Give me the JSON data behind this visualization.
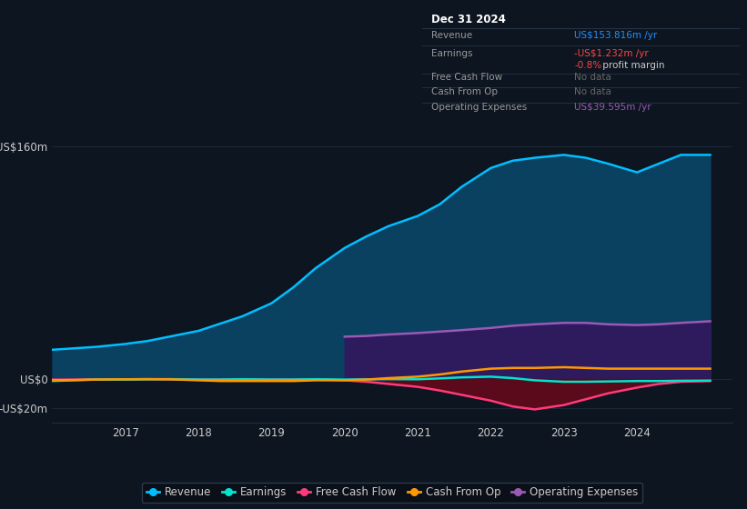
{
  "background_color": "#0d1520",
  "plot_bg_color": "#0d1520",
  "grid_color": "#1e2d3d",
  "years": [
    2016.0,
    2016.3,
    2016.6,
    2017.0,
    2017.3,
    2017.6,
    2018.0,
    2018.3,
    2018.6,
    2019.0,
    2019.3,
    2019.6,
    2020.0,
    2020.3,
    2020.6,
    2021.0,
    2021.3,
    2021.6,
    2022.0,
    2022.3,
    2022.6,
    2023.0,
    2023.3,
    2023.6,
    2024.0,
    2024.3,
    2024.6,
    2025.0
  ],
  "revenue": [
    20,
    21,
    22,
    24,
    26,
    29,
    33,
    38,
    43,
    52,
    63,
    76,
    90,
    98,
    105,
    112,
    120,
    132,
    145,
    150,
    152,
    154,
    152,
    148,
    142,
    148,
    154,
    154
  ],
  "earnings": [
    -1.5,
    -1.0,
    -0.5,
    -0.5,
    -0.3,
    -0.2,
    -0.5,
    -0.5,
    -0.3,
    -0.5,
    -0.5,
    -0.3,
    -0.5,
    -0.3,
    -0.2,
    -0.3,
    0.3,
    1.0,
    1.5,
    0.5,
    -1.0,
    -2.0,
    -2.0,
    -1.8,
    -1.5,
    -1.5,
    -1.3,
    -1.2
  ],
  "free_cash_flow": [
    -0.5,
    -0.5,
    -0.3,
    -0.3,
    -0.2,
    -0.3,
    -0.5,
    -0.5,
    -0.3,
    -0.5,
    -0.5,
    -0.3,
    -1.0,
    -2.0,
    -3.5,
    -5.5,
    -8.0,
    -11.0,
    -15.0,
    -19.0,
    -21.0,
    -18.0,
    -14.0,
    -10.0,
    -6.0,
    -3.5,
    -2.0,
    -1.5
  ],
  "cash_from_op": [
    -1.0,
    -0.8,
    -0.5,
    -0.3,
    -0.2,
    -0.3,
    -1.0,
    -1.5,
    -1.5,
    -1.5,
    -1.5,
    -1.0,
    -1.0,
    -0.5,
    0.5,
    1.5,
    3.0,
    5.0,
    7.0,
    7.5,
    7.5,
    8.0,
    7.5,
    7.0,
    7.0,
    7.0,
    7.0,
    7.0
  ],
  "op_expenses_x": [
    2020.0,
    2020.3,
    2020.6,
    2021.0,
    2021.3,
    2021.6,
    2022.0,
    2022.3,
    2022.6,
    2023.0,
    2023.3,
    2023.6,
    2024.0,
    2024.3,
    2024.6,
    2025.0
  ],
  "op_expenses": [
    29,
    29.5,
    30.5,
    31.5,
    32.5,
    33.5,
    35.0,
    36.5,
    37.5,
    38.5,
    38.5,
    37.5,
    37.0,
    37.5,
    38.5,
    39.6
  ],
  "revenue_color": "#00bfff",
  "revenue_fill": "#0a4060",
  "earnings_color": "#00e5cc",
  "free_cash_flow_color": "#ff3a7a",
  "free_cash_flow_fill": "#5a0a1a",
  "cash_from_op_color": "#ff9900",
  "op_expenses_color": "#9b59b6",
  "op_expenses_fill": "#2d1b5e",
  "yticks": [
    -20,
    0,
    160
  ],
  "ytick_labels": [
    "-US$20m",
    "US$0",
    "US$160m"
  ],
  "xtick_labels": [
    "2017",
    "2018",
    "2019",
    "2020",
    "2021",
    "2022",
    "2023",
    "2024"
  ],
  "xtick_values": [
    2017,
    2018,
    2019,
    2020,
    2021,
    2022,
    2023,
    2024
  ],
  "ylim": [
    -30,
    180
  ],
  "xlim": [
    2016.0,
    2025.3
  ],
  "info_box": {
    "title": "Dec 31 2024",
    "rows": [
      {
        "label": "Revenue",
        "value": "US$153.816m",
        "value_suffix": " /yr",
        "value_color": "#1e90ff",
        "subvalue": null
      },
      {
        "label": "Earnings",
        "value": "-US$1.232m",
        "value_suffix": " /yr",
        "value_color": "#ff4444",
        "subvalue": "-0.8%",
        "subvalue_rest": " profit margin",
        "subvalue_color": "#ff4444"
      },
      {
        "label": "Free Cash Flow",
        "value": "No data",
        "value_suffix": "",
        "value_color": "#666666",
        "subvalue": null
      },
      {
        "label": "Cash From Op",
        "value": "No data",
        "value_suffix": "",
        "value_color": "#666666",
        "subvalue": null
      },
      {
        "label": "Operating Expenses",
        "value": "US$39.595m",
        "value_suffix": " /yr",
        "value_color": "#9b59b6",
        "subvalue": null
      }
    ],
    "bg_color": "#080e17",
    "border_color": "#2a3a4a",
    "title_color": "#ffffff",
    "label_color": "#999999"
  },
  "legend": [
    {
      "label": "Revenue",
      "color": "#00bfff"
    },
    {
      "label": "Earnings",
      "color": "#00e5cc"
    },
    {
      "label": "Free Cash Flow",
      "color": "#ff3a7a"
    },
    {
      "label": "Cash From Op",
      "color": "#ff9900"
    },
    {
      "label": "Operating Expenses",
      "color": "#9b59b6"
    }
  ]
}
